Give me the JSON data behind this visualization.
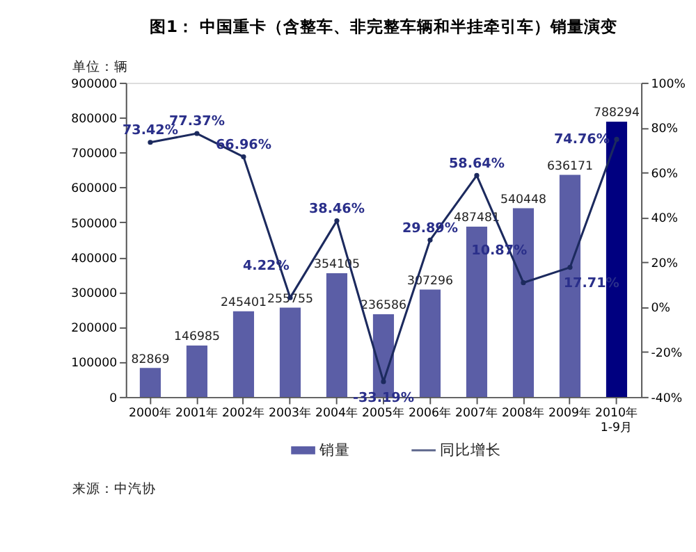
{
  "chart_data": {
    "type": "bar",
    "title": "图1：   中国重卡（含整车、非完整车辆和半挂牵引车）销量演变",
    "ylabel": "单位：辆",
    "categories": [
      "2000年",
      "2001年",
      "2002年",
      "2003年",
      "2004年",
      "2005年",
      "2006年",
      "2007年",
      "2008年",
      "2009年",
      "2010年\n1-9月"
    ],
    "series": [
      {
        "name": "销量",
        "type": "bar",
        "color": "#5b5ea6",
        "colors": [
          "#5b5ea6",
          "#5b5ea6",
          "#5b5ea6",
          "#5b5ea6",
          "#5b5ea6",
          "#5b5ea6",
          "#5b5ea6",
          "#5b5ea6",
          "#5b5ea6",
          "#5b5ea6",
          "#000080"
        ],
        "values": [
          82869,
          146985,
          245401,
          255755,
          354105,
          236586,
          307296,
          487481,
          540448,
          636171,
          788294
        ],
        "value_labels": [
          "82869",
          "146985",
          "245401",
          "255755",
          "354105",
          "236586",
          "307296",
          "487481",
          "540448",
          "636171",
          "788294"
        ]
      },
      {
        "name": "同比增长",
        "type": "line",
        "axis": "y2",
        "color": "#1c2a5e",
        "marker": "circle",
        "values": [
          73.42,
          77.37,
          66.96,
          4.22,
          38.46,
          -33.19,
          29.89,
          58.64,
          10.87,
          17.71,
          74.76
        ],
        "value_labels": [
          "73.42%",
          "77.37%",
          "66.96%",
          "4.22%",
          "38.46%",
          "-33.19%",
          "29.89%",
          "58.64%",
          "10.87%",
          "17.71%",
          "74.76%"
        ]
      }
    ],
    "ylim": [
      0,
      900000
    ],
    "yticks": [
      0,
      100000,
      200000,
      300000,
      400000,
      500000,
      600000,
      700000,
      800000,
      900000
    ],
    "y2lim": [
      -40,
      100
    ],
    "y2ticks": [
      {
        "value": -40,
        "label": "-40%"
      },
      {
        "value": -20,
        "label": "-20%"
      },
      {
        "value": 0,
        "label": "0%"
      },
      {
        "value": 20,
        "label": "20%"
      },
      {
        "value": 40,
        "label": "40%"
      },
      {
        "value": 60,
        "label": "60%"
      },
      {
        "value": 80,
        "label": "80%"
      },
      {
        "value": 100,
        "label": "100%"
      }
    ],
    "grid": false,
    "legend": "bottom",
    "annotations": [
      "来源：中汽协"
    ]
  }
}
